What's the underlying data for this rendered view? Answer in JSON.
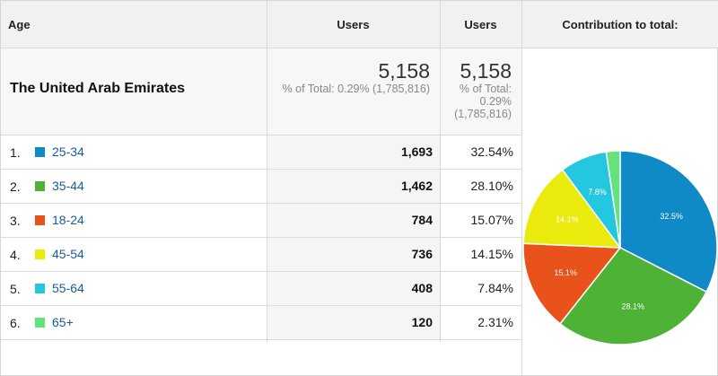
{
  "header": {
    "age": "Age",
    "users1": "Users",
    "users2": "Users",
    "contribution": "Contribution to total:"
  },
  "total": {
    "label": "The United Arab Emirates",
    "users": "5,158",
    "pct_line": "% of Total: 0.29% (1,785,816)",
    "users2": "5,158",
    "pct_line2_a": "% of Total:",
    "pct_line2_b": "0.29%",
    "pct_line2_c": "(1,785,816)"
  },
  "rows": [
    {
      "rank": "1.",
      "label": "25-34",
      "color": "#0f8ac6",
      "users": "1,693",
      "pct": "32.54%"
    },
    {
      "rank": "2.",
      "label": "35-44",
      "color": "#4db236",
      "users": "1,462",
      "pct": "28.10%"
    },
    {
      "rank": "3.",
      "label": "18-24",
      "color": "#ea521b",
      "users": "784",
      "pct": "15.07%"
    },
    {
      "rank": "4.",
      "label": "45-54",
      "color": "#eaeb0c",
      "users": "736",
      "pct": "14.15%"
    },
    {
      "rank": "5.",
      "label": "55-64",
      "color": "#25c7e0",
      "users": "408",
      "pct": "7.84%"
    },
    {
      "rank": "6.",
      "label": "65+",
      "color": "#62e37b",
      "users": "120",
      "pct": "2.31%"
    }
  ],
  "chart_data": {
    "type": "pie",
    "categories": [
      "25-34",
      "35-44",
      "18-24",
      "45-54",
      "55-64",
      "65+"
    ],
    "values": [
      32.54,
      28.1,
      15.07,
      14.15,
      7.84,
      2.31
    ],
    "slice_labels": [
      "32.5%",
      "28.1%",
      "15.1%",
      "14.1%",
      "7.8%",
      ""
    ],
    "colors": [
      "#0f8ac6",
      "#4db236",
      "#ea521b",
      "#eaeb0c",
      "#25c7e0",
      "#62e37b"
    ]
  }
}
